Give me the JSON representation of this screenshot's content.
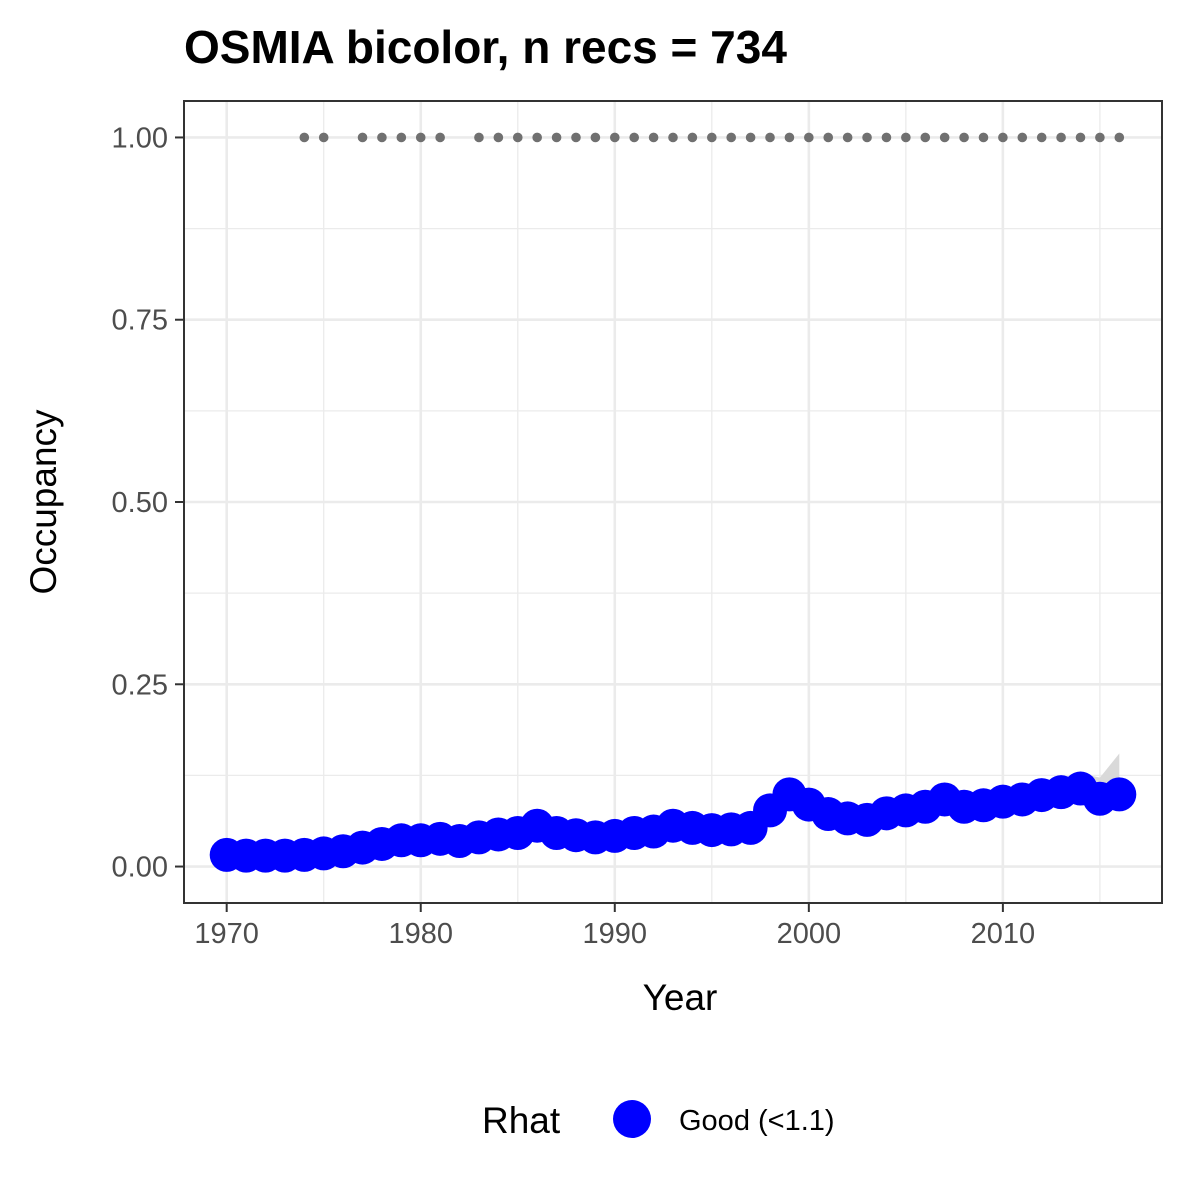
{
  "chart_data": {
    "type": "line",
    "title": "OSMIA bicolor, n recs = 734",
    "xlabel": "Year",
    "ylabel": "Occupancy",
    "xlim": [
      1967.8,
      2018.2
    ],
    "ylim": [
      -0.05,
      1.05
    ],
    "x_ticks": [
      1970,
      1980,
      1990,
      2000,
      2010
    ],
    "x_tick_labels": [
      "1970",
      "1980",
      "1990",
      "2000",
      "2010"
    ],
    "y_ticks": [
      0,
      0.25,
      0.5,
      0.75,
      1.0
    ],
    "y_tick_labels": [
      "0.00",
      "0.25",
      "0.50",
      "0.75",
      "1.00"
    ],
    "grid": true,
    "colors": {
      "series": "#0000ff",
      "ribbon": "#d9d9d9",
      "record_dots": "#707070",
      "grid": "#ebebeb",
      "panel_border": "#333333"
    },
    "series": [
      {
        "x": [
          1970,
          1971,
          1972,
          1973,
          1974,
          1975,
          1976,
          1977,
          1978,
          1979,
          1980,
          1981,
          1982,
          1983,
          1984,
          1985,
          1986,
          1987,
          1988,
          1989,
          1990,
          1991,
          1992,
          1993,
          1994,
          1995,
          1996,
          1997,
          1998,
          1999,
          2000,
          2001,
          2002,
          2003,
          2004,
          2005,
          2006,
          2007,
          2008,
          2009,
          2010,
          2011,
          2012,
          2013,
          2014,
          2015,
          2016
        ],
        "values": [
          0.016,
          0.015,
          0.015,
          0.015,
          0.016,
          0.018,
          0.021,
          0.026,
          0.031,
          0.036,
          0.036,
          0.038,
          0.035,
          0.04,
          0.044,
          0.046,
          0.056,
          0.046,
          0.043,
          0.04,
          0.042,
          0.046,
          0.048,
          0.056,
          0.053,
          0.05,
          0.051,
          0.053,
          0.077,
          0.099,
          0.085,
          0.072,
          0.066,
          0.064,
          0.073,
          0.077,
          0.082,
          0.092,
          0.082,
          0.084,
          0.089,
          0.092,
          0.098,
          0.102,
          0.107,
          0.093,
          0.099
        ],
        "ci_lower": [
          0.01,
          0.01,
          0.01,
          0.01,
          0.011,
          0.013,
          0.016,
          0.021,
          0.026,
          0.03,
          0.031,
          0.032,
          0.03,
          0.034,
          0.037,
          0.038,
          0.046,
          0.04,
          0.037,
          0.034,
          0.036,
          0.04,
          0.042,
          0.049,
          0.047,
          0.044,
          0.045,
          0.046,
          0.066,
          0.089,
          0.076,
          0.064,
          0.058,
          0.056,
          0.065,
          0.068,
          0.073,
          0.083,
          0.073,
          0.075,
          0.079,
          0.081,
          0.086,
          0.088,
          0.089,
          0.075,
          0.079
        ],
        "ci_upper": [
          0.022,
          0.021,
          0.021,
          0.021,
          0.022,
          0.024,
          0.027,
          0.032,
          0.037,
          0.042,
          0.042,
          0.044,
          0.041,
          0.047,
          0.052,
          0.056,
          0.07,
          0.053,
          0.05,
          0.047,
          0.049,
          0.053,
          0.055,
          0.064,
          0.06,
          0.057,
          0.058,
          0.061,
          0.089,
          0.111,
          0.095,
          0.081,
          0.075,
          0.073,
          0.082,
          0.087,
          0.092,
          0.102,
          0.092,
          0.094,
          0.1,
          0.104,
          0.112,
          0.118,
          0.128,
          0.122,
          0.155
        ]
      }
    ],
    "record_years": [
      1974,
      1975,
      1977,
      1978,
      1979,
      1980,
      1981,
      1983,
      1984,
      1985,
      1986,
      1987,
      1988,
      1989,
      1990,
      1991,
      1992,
      1993,
      1994,
      1995,
      1996,
      1997,
      1998,
      1999,
      2000,
      2001,
      2002,
      2003,
      2004,
      2005,
      2006,
      2007,
      2008,
      2009,
      2010,
      2011,
      2012,
      2013,
      2014,
      2015,
      2016
    ],
    "record_value": 1.0,
    "legend": {
      "title": "Rhat",
      "label": "Good (<1.1)",
      "position": "bottom"
    }
  }
}
